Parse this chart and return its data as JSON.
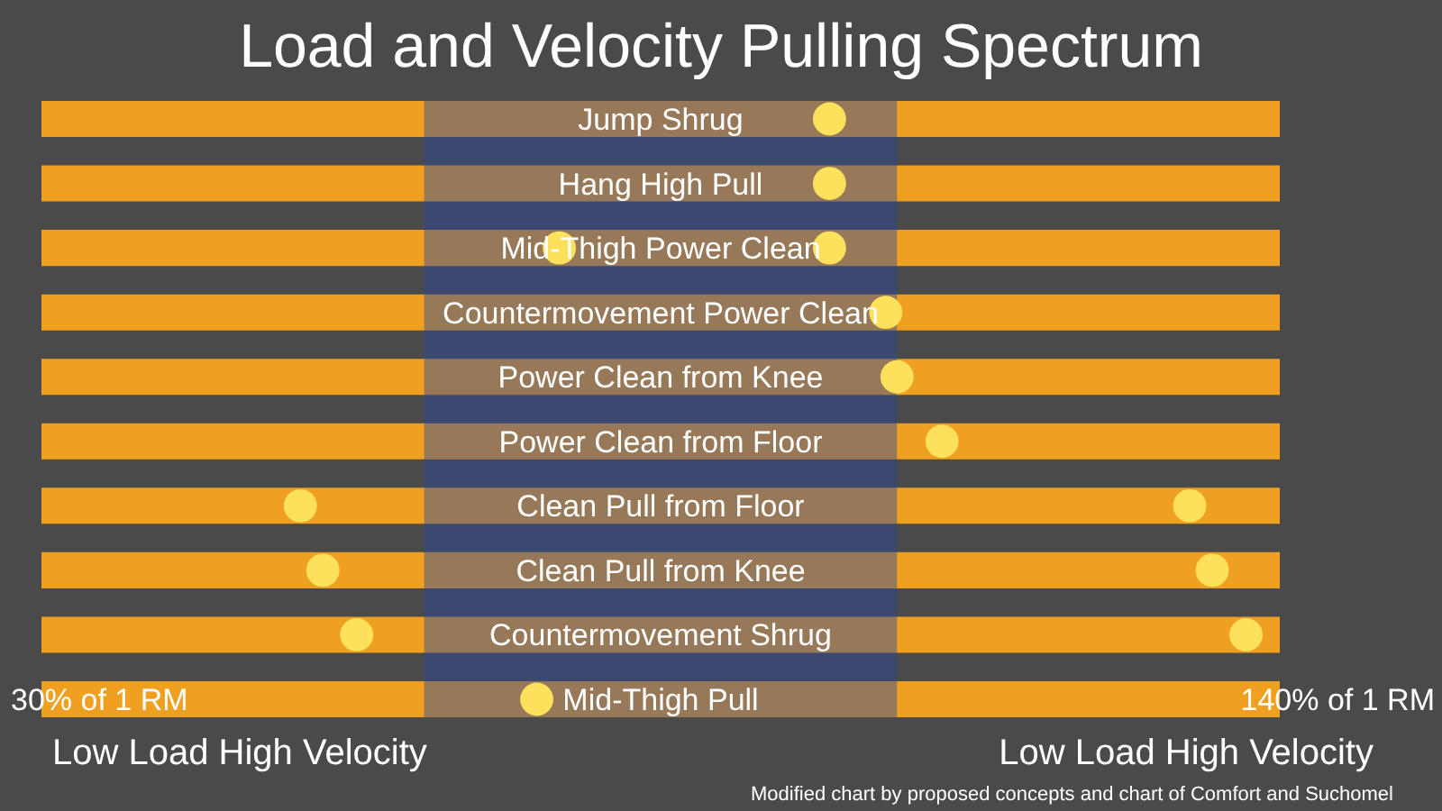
{
  "chart_data": {
    "type": "bar",
    "orientation": "horizontal",
    "title": "Load and Velocity Pulling Spectrum",
    "categories": [
      "Jump Shrug",
      "Hang High Pull",
      "Mid-Thigh Power Clean",
      "Countermovement Power Clean",
      "Power Clean from Knee",
      "Power Clean from Floor",
      "Clean Pull from Floor",
      "Clean Pull from Knee",
      "Countermovement Shrug",
      "Mid-Thigh Pull"
    ],
    "series": [
      {
        "color": "#f0a020",
        "base": [
          30,
          30,
          30,
          30,
          30,
          30,
          30,
          30,
          30,
          30
        ],
        "values": [
          110,
          110,
          110,
          110,
          110,
          110,
          110,
          110,
          110,
          110
        ]
      },
      {
        "type": "scatter",
        "color": "#fde05c",
        "values": [
          100,
          100,
          76,
          105,
          106,
          110,
          53,
          55,
          58,
          74
        ]
      },
      {
        "type": "scatter",
        "color": "#fde05c",
        "values": [
          null,
          null,
          100,
          null,
          null,
          null,
          132,
          134,
          137,
          null
        ]
      }
    ],
    "xlim": [
      30,
      140
    ],
    "xticks": [
      {
        "value": 30,
        "label": "30%"
      },
      {
        "value": 140,
        "label": "140%"
      }
    ],
    "bands": [
      {
        "axis": "x",
        "from": 64,
        "to": 106,
        "color": "#2a4aa0"
      }
    ],
    "marker": "circle",
    "annotations": [
      "of 1 RM",
      "of 1 RM",
      "Low Load High Velocity",
      "Low Load High Velocity",
      "Modified chart by proposed concepts and chart of Comfort and Suchomel"
    ]
  }
}
